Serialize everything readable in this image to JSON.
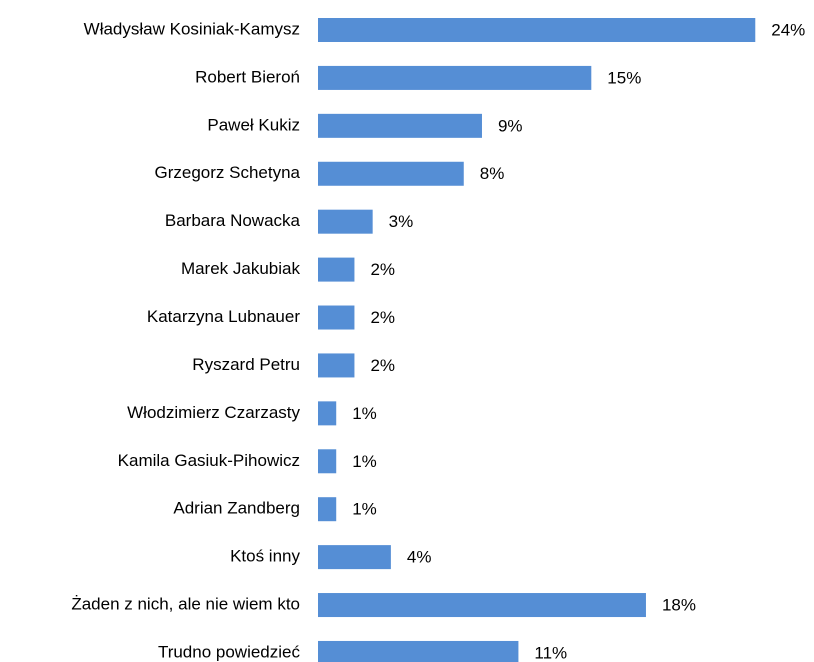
{
  "chart_data": {
    "type": "bar",
    "orientation": "horizontal",
    "color": "#558ed5",
    "categories": [
      "Władysław Kosiniak-Kamysz",
      "Robert Bieroń",
      "Paweł Kukiz",
      "Grzegorz Schetyna",
      "Barbara Nowacka",
      "Marek Jakubiak",
      "Katarzyna Lubnauer",
      "Ryszard Petru",
      "Włodzimierz Czarzasty",
      "Kamila Gasiuk-Pihowicz",
      "Adrian Zandberg",
      "Ktoś inny",
      "Żaden z nich, ale nie wiem kto",
      "Trudno powiedzieć"
    ],
    "values": [
      24,
      15,
      9,
      8,
      3,
      2,
      2,
      2,
      1,
      1,
      1,
      4,
      18,
      11
    ],
    "value_labels": [
      "24%",
      "15%",
      "9%",
      "8%",
      "3%",
      "2%",
      "2%",
      "2%",
      "1%",
      "1%",
      "1%",
      "4%",
      "18%",
      "11%"
    ]
  }
}
